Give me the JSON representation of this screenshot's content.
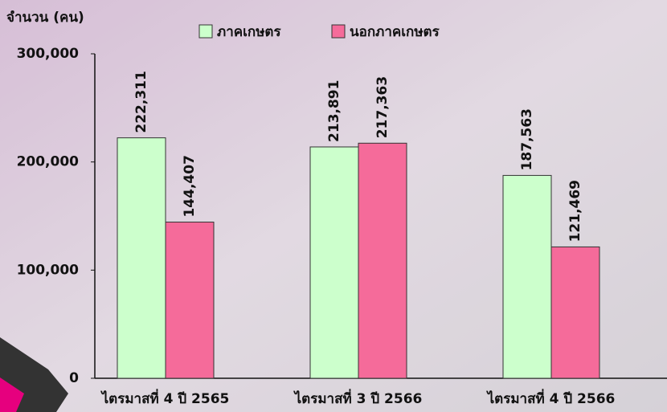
{
  "chart_data": {
    "type": "bar",
    "y_axis_title": "จำนวน (คน)",
    "categories": [
      "ไตรมาสที่ 4 ปี 2565",
      "ไตรมาสที่ 3 ปี 2566",
      "ไตรมาสที่ 4 ปี 2566"
    ],
    "series": [
      {
        "name": "ภาคเกษตร",
        "color": "#ccffcc",
        "values": [
          222311,
          213891,
          187563
        ],
        "value_labels": [
          "222,311",
          "213,891",
          "187,563"
        ]
      },
      {
        "name": "นอกภาคเกษตร",
        "color": "#f56b9a",
        "values": [
          144407,
          217363,
          121469
        ],
        "value_labels": [
          "144,407",
          "217,363",
          "121,469"
        ]
      }
    ],
    "ylim": [
      0,
      300000
    ],
    "yticks": [
      0,
      {
        "value": 100000,
        "label": "100,000"
      },
      {
        "value": 200000,
        "label": "200,000"
      },
      {
        "value": 300000,
        "label": "300,000"
      }
    ],
    "grid": false
  }
}
